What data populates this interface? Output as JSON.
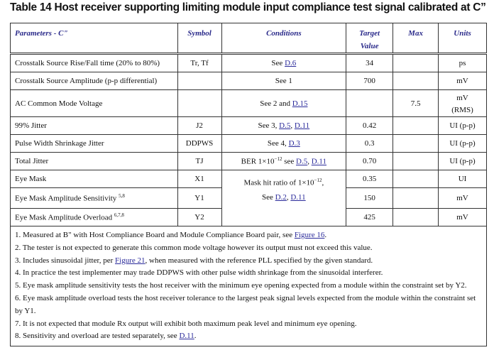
{
  "title": "Table 14  Host receiver supporting limiting module input compliance test signal calibrated at C”",
  "headers": {
    "param": "Parameters - C\"",
    "symbol": "Symbol",
    "conditions": "Conditions",
    "target1": "Target",
    "target2": "Value",
    "max": "Max",
    "units": "Units"
  },
  "rows": [
    {
      "param": "Crosstalk Source Rise/Fall time (20% to 80%)",
      "symbol": "Tr, Tf",
      "cond_pre": "See ",
      "links": [
        "D.6"
      ],
      "target": "34",
      "max": "",
      "units": "ps"
    },
    {
      "param": "Crosstalk Source Amplitude (p-p differential)",
      "symbol": "",
      "cond_pre": "See 1",
      "links": [],
      "target": "700",
      "max": "",
      "units": "mV"
    },
    {
      "param": "AC Common Mode Voltage",
      "symbol": "",
      "cond_pre": "See 2 and ",
      "links": [
        "D.15"
      ],
      "target": "",
      "max": "7.5",
      "units": "mV",
      "units2": "(RMS)"
    },
    {
      "param": "99% Jitter",
      "symbol": "J2",
      "cond_pre": "See 3, ",
      "links": [
        "D.5",
        "D.11"
      ],
      "target": "0.42",
      "max": "",
      "units": "UI (p-p)"
    },
    {
      "param": "Pulse Width Shrinkage Jitter",
      "symbol": "DDPWS",
      "cond_pre": "See 4, ",
      "links": [
        "D.3"
      ],
      "target": "0.3",
      "max": "",
      "units": "UI (p-p)"
    },
    {
      "param": "Total Jitter",
      "symbol": "TJ",
      "cond_pre": "BER 1×10",
      "cond_sup": "−12",
      "cond_mid": " see ",
      "links": [
        "D.5",
        "D.11"
      ],
      "target": "0.70",
      "max": "",
      "units": "UI (p-p)"
    },
    {
      "param": "Eye Mask",
      "symbol": "X1",
      "target": "0.35",
      "max": "",
      "units": "UI"
    },
    {
      "param": "Eye Mask Amplitude Sensitivity ",
      "param_sup": "5,8",
      "symbol": "Y1",
      "target": "150",
      "max": "",
      "units": "mV"
    },
    {
      "param": "Eye Mask Amplitude Overload ",
      "param_sup": "6,7,8",
      "symbol": "Y2",
      "target": "425",
      "max": "",
      "units": "mV"
    }
  ],
  "eye_cond": {
    "line1": "Mask hit ratio of 1×10",
    "sup": "−12",
    "line1_end": ",",
    "line2": "See ",
    "links": [
      "D.2",
      "D.11"
    ]
  },
  "notes": [
    {
      "text": "1. Measured at B\" with Host Compliance Board and Module Compliance Board pair, see ",
      "link": "Figure 16",
      "end": "."
    },
    {
      "text": "2. The tester is not expected to generate this common mode voltage however its output must not exceed this value."
    },
    {
      "text": "3. Includes sinusoidal jitter, per ",
      "link": "Figure 21",
      "end": ", when measured with the reference PLL specified by the given standard."
    },
    {
      "text": "4. In practice the test implementer may trade DDPWS with other pulse width shrinkage from the sinusoidal interferer."
    },
    {
      "text": "5. Eye mask amplitude sensitivity tests the host receiver with the minimum eye opening expected from a module within the constraint set by Y2."
    },
    {
      "text": "6. Eye mask amplitude overload tests the host receiver tolerance to the largest peak signal levels expected from the module within the constraint set by Y1."
    },
    {
      "text": "7. It is not expected that module Rx output will exhibit both maximum peak level and minimum eye opening."
    },
    {
      "text": "8. Sensitivity and overload are tested separately, see ",
      "link": "D.11",
      "end": "."
    }
  ]
}
